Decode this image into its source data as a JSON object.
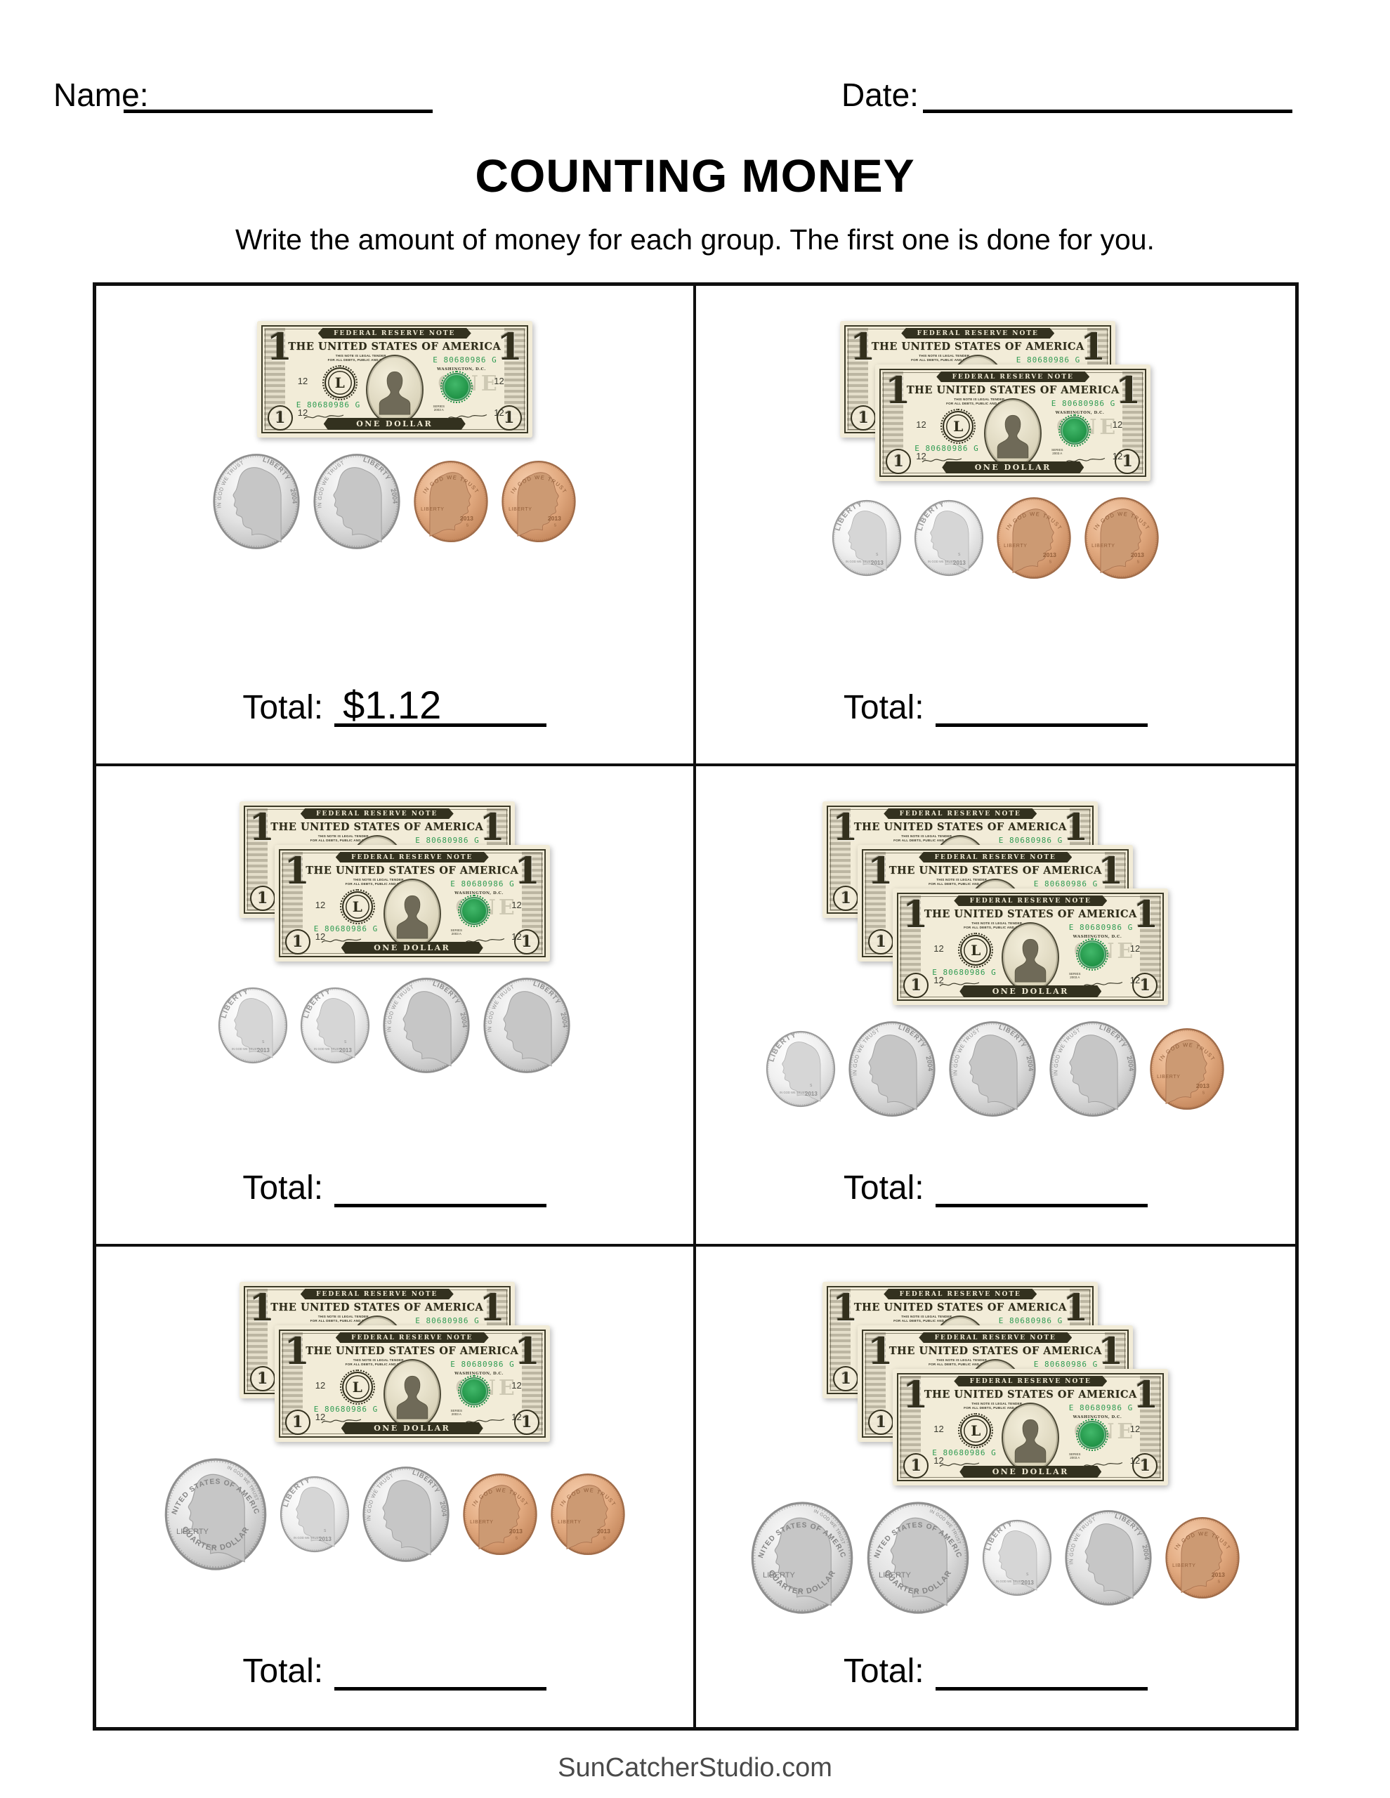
{
  "page": {
    "name_label": "Name:",
    "date_label": "Date:",
    "title": "COUNTING MONEY",
    "instructions": "Write the amount of money for each group. The first one is done for you.",
    "footer": "SunCatcherStudio.com"
  },
  "bill": {
    "banner_top": "FEDERAL RESERVE NOTE",
    "country": "THE UNITED STATES OF AMERICA",
    "legal_line1": "THIS NOTE IS LEGAL TENDER",
    "legal_line2": "FOR ALL DEBTS, PUBLIC AND PRIVATE",
    "serial": "E 80680986 G",
    "city": "WASHINGTON, D.C.",
    "district_number": "12",
    "seal_letter": "L",
    "watermark": "ONE",
    "series": "SERIES 2003 A",
    "denomination_banner": "ONE DOLLAR",
    "corner_numeral": "1"
  },
  "coins": {
    "quarter": {
      "top_arc": "UNITED STATES OF AMERICA",
      "label": "LIBERTY",
      "motto": "IN GOD WE TRUST",
      "bottom_arc": "QUARTER DOLLAR",
      "mint_mark": "P"
    },
    "dime": {
      "label": "LIBERTY",
      "motto": "IN GOD WE TRUST",
      "year": "2013",
      "mint_mark": "S"
    },
    "nickel": {
      "label": "LIBERTY",
      "motto": "IN GOD WE TRUST",
      "year": "2004"
    },
    "penny": {
      "motto": "IN GOD WE TRUST",
      "label": "LIBERTY",
      "year": "2013",
      "mint_mark": "S"
    }
  },
  "cells": [
    {
      "bills": 1,
      "coins": [
        "nickel",
        "nickel",
        "penny",
        "penny"
      ],
      "total_label": "Total:",
      "total_value": "$1.12"
    },
    {
      "bills": 2,
      "coins": [
        "dime",
        "dime",
        "penny",
        "penny"
      ],
      "total_label": "Total:",
      "total_value": ""
    },
    {
      "bills": 2,
      "coins": [
        "dime",
        "dime",
        "nickel",
        "nickel"
      ],
      "total_label": "Total:",
      "total_value": ""
    },
    {
      "bills": 3,
      "coins": [
        "dime",
        "nickel",
        "nickel",
        "nickel",
        "penny"
      ],
      "total_label": "Total:",
      "total_value": ""
    },
    {
      "bills": 2,
      "coins": [
        "quarter",
        "dime",
        "nickel",
        "penny",
        "penny"
      ],
      "total_label": "Total:",
      "total_value": ""
    },
    {
      "bills": 3,
      "coins": [
        "quarter",
        "quarter",
        "dime",
        "nickel",
        "penny"
      ],
      "total_label": "Total:",
      "total_value": ""
    }
  ]
}
